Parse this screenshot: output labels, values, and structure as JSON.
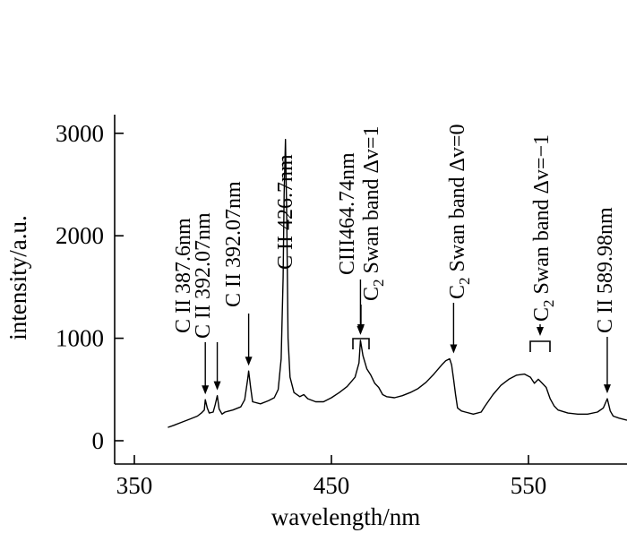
{
  "chart_data": {
    "type": "line",
    "title": "",
    "xlabel": "wavelength/nm",
    "ylabel": "intensity/a.u.",
    "xlim": [
      350,
      600
    ],
    "ylim": [
      -100,
      3100
    ],
    "xticks": [
      "350",
      "450",
      "550"
    ],
    "yticks": [
      "0",
      "1000",
      "2000",
      "3000"
    ],
    "grid": false,
    "legend": "none",
    "line_color": "#000000",
    "series": [
      {
        "x": [
          367,
          370,
          374,
          378,
          382,
          384,
          385.5,
          386,
          387,
          388,
          390,
          391,
          392.07,
          393,
          394.5,
          396,
          400,
          404,
          406,
          407.5,
          408,
          409,
          410,
          414,
          418,
          421,
          423,
          424.5,
          425.5,
          426,
          426.7,
          427.3,
          428,
          429,
          431,
          434,
          436,
          438,
          442,
          446,
          450,
          454,
          458,
          462,
          464,
          464.74,
          466,
          468,
          470,
          472,
          474,
          476,
          478,
          482,
          486,
          490,
          494,
          498,
          502,
          506,
          508,
          510,
          511,
          512,
          513,
          514,
          516,
          518,
          522,
          526,
          528,
          532,
          536,
          540,
          544,
          548,
          551,
          553,
          555,
          557,
          559,
          561,
          563,
          565,
          570,
          575,
          580,
          585,
          588,
          589.98,
          591.5,
          593,
          596,
          600
        ],
        "y": [
          130,
          150,
          180,
          210,
          240,
          270,
          300,
          400,
          320,
          270,
          280,
          350,
          440,
          310,
          260,
          280,
          300,
          330,
          400,
          600,
          680,
          520,
          380,
          360,
          390,
          420,
          500,
          800,
          1600,
          2400,
          2940,
          2200,
          1000,
          620,
          470,
          430,
          450,
          410,
          380,
          380,
          420,
          470,
          530,
          620,
          760,
          980,
          830,
          700,
          640,
          560,
          520,
          450,
          430,
          420,
          440,
          470,
          510,
          570,
          650,
          740,
          780,
          800,
          740,
          600,
          450,
          320,
          290,
          280,
          260,
          280,
          340,
          450,
          540,
          600,
          640,
          650,
          620,
          560,
          600,
          560,
          520,
          410,
          340,
          300,
          270,
          260,
          260,
          280,
          320,
          410,
          290,
          240,
          220,
          200
        ]
      }
    ]
  },
  "annotations": [
    {
      "label": "C II  387.6nm",
      "x": 386,
      "y": 400
    },
    {
      "label": "C II  392.07nm",
      "x": 392.07,
      "y": 440
    },
    {
      "label": "C II  392.07nm",
      "x": 408,
      "y": 680
    },
    {
      "label": "C II  426.7nm",
      "x": 426.7,
      "y": 2940
    },
    {
      "label": "CIII464.74nm",
      "x": 464.74,
      "y": 980
    },
    {
      "label": "C",
      "sub": "2",
      "rest": " Swan band Δv=1",
      "x": 476,
      "y": 520
    },
    {
      "label": "C",
      "sub": "2",
      "rest": " Swan band Δv=0",
      "x": 512,
      "y": 800
    },
    {
      "label": "C",
      "sub": "2",
      "rest": " Swan band Δv=−1",
      "x": 557,
      "y": 620
    },
    {
      "label": "C II  589.98nm",
      "x": 589.98,
      "y": 410
    }
  ]
}
